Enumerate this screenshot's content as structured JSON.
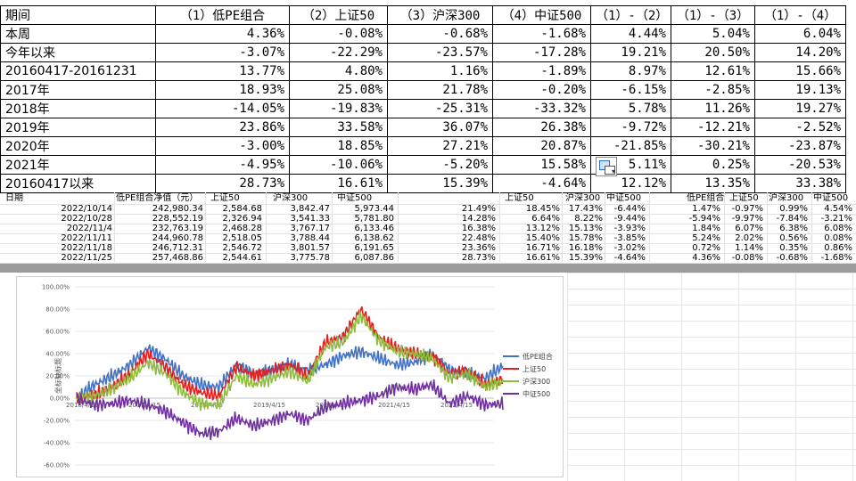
{
  "summary_table": {
    "headers": [
      "期间",
      "（1）低PE组合",
      "（2）上证50",
      "（3）沪深300",
      "（4）中证500",
      "（1）-（2）",
      "（1）-（3）",
      "（1）-（4）"
    ],
    "rows": [
      [
        "本周",
        "4.36%",
        "-0.08%",
        "-0.68%",
        "-1.68%",
        "4.44%",
        "5.04%",
        "6.04%"
      ],
      [
        "今年以来",
        "-3.07%",
        "-22.29%",
        "-23.57%",
        "-17.28%",
        "19.21%",
        "20.50%",
        "14.20%"
      ],
      [
        "20160417-20161231",
        "13.77%",
        "4.80%",
        "1.16%",
        "-1.89%",
        "8.97%",
        "12.61%",
        "15.66%"
      ],
      [
        "2017年",
        "18.93%",
        "25.08%",
        "21.78%",
        "-0.20%",
        "-6.15%",
        "-2.85%",
        "19.13%"
      ],
      [
        "2018年",
        "-14.05%",
        "-19.83%",
        "-25.31%",
        "-33.32%",
        "5.78%",
        "11.26%",
        "19.27%"
      ],
      [
        "2019年",
        "23.86%",
        "33.58%",
        "36.07%",
        "26.38%",
        "-9.72%",
        "-12.21%",
        "-2.52%"
      ],
      [
        "2020年",
        "-3.00%",
        "18.85%",
        "27.21%",
        "20.87%",
        "-21.85%",
        "-30.21%",
        "-23.87%"
      ],
      [
        "2021年",
        "-4.95%",
        "-10.06%",
        "-5.20%",
        "15.58%",
        "5.11%",
        "0.25%",
        "-20.53%"
      ],
      [
        "20160417以来",
        "28.73%",
        "16.61%",
        "15.39%",
        "-4.64%",
        "12.12%",
        "13.35%",
        "33.38%"
      ]
    ]
  },
  "sheet": {
    "header_left": [
      "日期",
      "低PE组合净值（元）",
      "上证50",
      "沪深300",
      "中证500"
    ],
    "header_mid": [
      "上证50",
      "沪深300",
      "中证500"
    ],
    "header_right": [
      "低PE组合",
      "上证50",
      "沪深300",
      "中证500"
    ],
    "rows": [
      {
        "date": "2022/10/14",
        "v1": "242,980.34",
        "v2": "2,584.68",
        "v3": "3,842.47",
        "v4": "5,973.44",
        "c1": "21.49%",
        "c2": "18.45%",
        "c3": "17.43%",
        "c4": "-6.44%",
        "w1": "1.47%",
        "w2": "-0.97%",
        "w3": "0.99%",
        "w4": "4.54%"
      },
      {
        "date": "2022/10/28",
        "v1": "228,552.19",
        "v2": "2,326.94",
        "v3": "3,541.33",
        "v4": "5,781.80",
        "c1": "14.28%",
        "c2": "6.64%",
        "c3": "8.22%",
        "c4": "-9.44%",
        "w1": "-5.94%",
        "w2": "-9.97%",
        "w3": "-7.84%",
        "w4": "-3.21%"
      },
      {
        "date": "2022/11/4",
        "v1": "232,763.19",
        "v2": "2,468.28",
        "v3": "3,767.17",
        "v4": "6,133.46",
        "c1": "16.38%",
        "c2": "13.12%",
        "c3": "15.13%",
        "c4": "-3.93%",
        "w1": "1.84%",
        "w2": "6.07%",
        "w3": "6.38%",
        "w4": "6.08%"
      },
      {
        "date": "2022/11/11",
        "v1": "244,960.78",
        "v2": "2,518.05",
        "v3": "3,788.44",
        "v4": "6,138.62",
        "c1": "22.48%",
        "c2": "15.40%",
        "c3": "15.78%",
        "c4": "-3.85%",
        "w1": "5.24%",
        "w2": "2.02%",
        "w3": "0.56%",
        "w4": "0.08%"
      },
      {
        "date": "2022/11/18",
        "v1": "246,712.31",
        "v2": "2,546.72",
        "v3": "3,801.57",
        "v4": "6,191.65",
        "c1": "23.36%",
        "c2": "16.71%",
        "c3": "16.18%",
        "c4": "-3.02%",
        "w1": "0.72%",
        "w2": "1.14%",
        "w3": "0.35%",
        "w4": "0.86%"
      },
      {
        "date": "2022/11/25",
        "v1": "257,468.86",
        "v2": "2,544.61",
        "v3": "3,775.78",
        "v4": "6,087.86",
        "c1": "28.73%",
        "c2": "16.61%",
        "c3": "15.39%",
        "c4": "-4.64%",
        "w1": "4.36%",
        "w2": "-0.08%",
        "w3": "-0.68%",
        "w4": "-1.68%"
      }
    ]
  },
  "chart_data": {
    "type": "line",
    "title": "",
    "ylabel": "坐标轴标题",
    "ylim": [
      -0.6,
      1.0
    ],
    "y_ticks": [
      "100.00%",
      "80.00%",
      "60.00%",
      "40.00%",
      "20.00%",
      "0.00%",
      "-20.00%",
      "-40.00%",
      "-60.00%"
    ],
    "x_ticks": [
      "2016/4/15",
      "2017/4/15",
      "2018/4/15",
      "2019/4/15",
      "2020/4/15",
      "2021/4/15",
      "2022/4/15"
    ],
    "x": [
      "2016/4/15",
      "2016/10/15",
      "2017/4/15",
      "2017/10/15",
      "2018/1/15",
      "2018/4/15",
      "2018/7/15",
      "2018/10/15",
      "2019/1/15",
      "2019/4/15",
      "2019/7/15",
      "2019/10/15",
      "2020/1/15",
      "2020/4/15",
      "2020/7/15",
      "2020/10/15",
      "2021/1/15",
      "2021/4/15",
      "2021/7/15",
      "2021/10/15",
      "2022/1/15",
      "2022/4/15",
      "2022/7/15",
      "2022/10/15",
      "2022/11/25"
    ],
    "legend_position": "right",
    "series": [
      {
        "name": "低PE组合",
        "color": "#4472c4",
        "values": [
          0.0,
          0.12,
          0.2,
          0.3,
          0.45,
          0.35,
          0.2,
          0.12,
          0.1,
          0.3,
          0.22,
          0.25,
          0.3,
          0.25,
          0.3,
          0.38,
          0.42,
          0.36,
          0.3,
          0.32,
          0.4,
          0.25,
          0.22,
          0.18,
          0.29
        ]
      },
      {
        "name": "上证50",
        "color": "#e02020",
        "values": [
          0.0,
          0.03,
          0.1,
          0.22,
          0.4,
          0.28,
          0.12,
          0.05,
          0.02,
          0.28,
          0.2,
          0.25,
          0.3,
          0.2,
          0.5,
          0.55,
          0.8,
          0.55,
          0.45,
          0.4,
          0.38,
          0.22,
          0.25,
          0.12,
          0.17
        ]
      },
      {
        "name": "沪深300",
        "color": "#8fbc3f",
        "values": [
          0.0,
          0.02,
          0.08,
          0.18,
          0.32,
          0.22,
          0.05,
          -0.05,
          -0.06,
          0.2,
          0.12,
          0.18,
          0.24,
          0.15,
          0.46,
          0.5,
          0.74,
          0.52,
          0.42,
          0.4,
          0.36,
          0.18,
          0.22,
          0.1,
          0.15
        ]
      },
      {
        "name": "中证500",
        "color": "#7030a0",
        "values": [
          0.0,
          -0.06,
          -0.05,
          -0.02,
          -0.06,
          -0.12,
          -0.22,
          -0.32,
          -0.3,
          -0.18,
          -0.25,
          -0.2,
          -0.14,
          -0.2,
          -0.08,
          -0.05,
          -0.02,
          0.02,
          0.1,
          0.08,
          0.12,
          -0.05,
          0.02,
          -0.06,
          -0.05
        ]
      }
    ]
  }
}
